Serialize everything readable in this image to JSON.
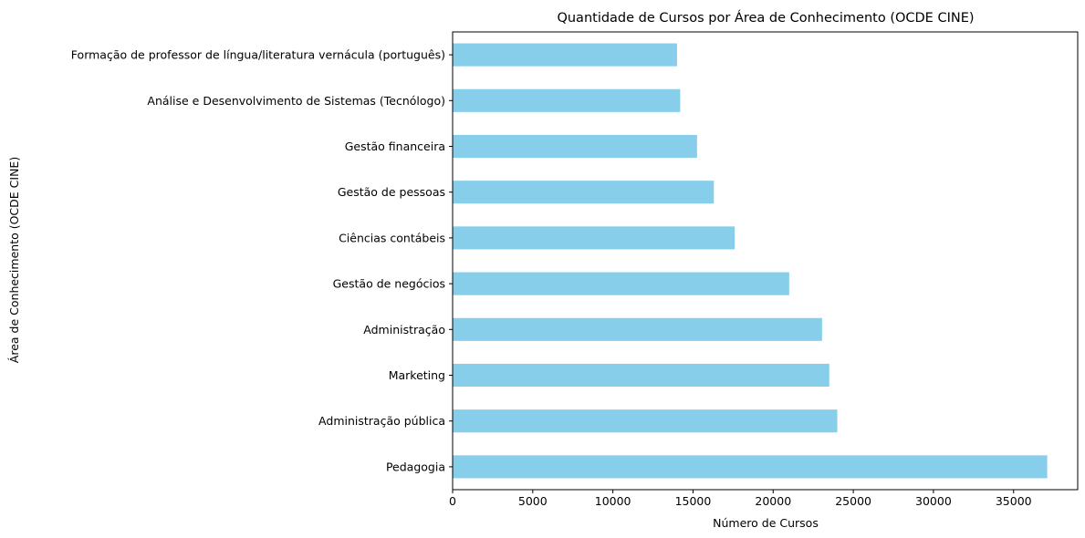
{
  "chart_data": {
    "type": "bar",
    "orientation": "horizontal",
    "title": "Quantidade de Cursos por Área de Conhecimento (OCDE CINE)",
    "xlabel": "Número de Cursos",
    "ylabel": "Área de Conhecimento (OCDE CINE)",
    "categories": [
      "Pedagogia",
      "Administração pública",
      "Marketing",
      "Administração",
      "Gestão de negócios",
      "Ciências contábeis",
      "Gestão de pessoas",
      "Gestão financeira",
      "Análise e Desenvolvimento de Sistemas (Tecnólogo)",
      "Formação de professor de língua/literatura vernácula (português)"
    ],
    "values": [
      37100,
      24000,
      23500,
      23050,
      21000,
      17600,
      16300,
      15250,
      14200,
      14000
    ],
    "xlim": [
      0,
      39000
    ],
    "xticks": [
      0,
      5000,
      10000,
      15000,
      20000,
      25000,
      30000,
      35000
    ],
    "bar_color": "#87ceeb",
    "grid": false,
    "legend": "none"
  }
}
